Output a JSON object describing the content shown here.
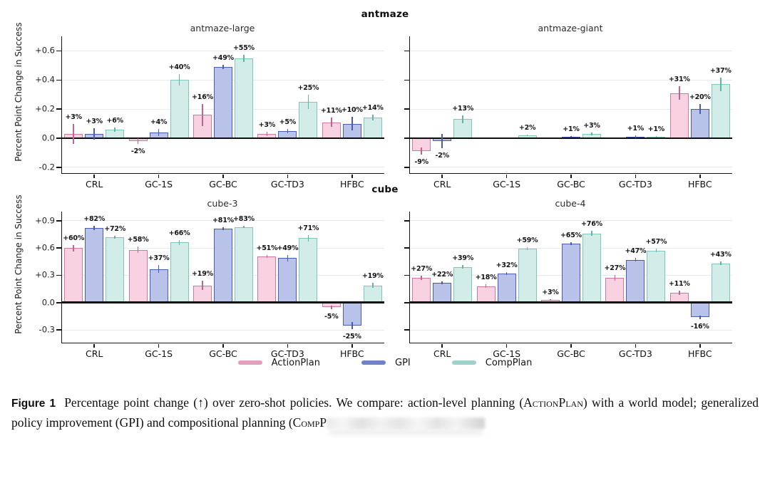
{
  "rows": [
    {
      "header": "antmaze",
      "ylabel": "Percent Point Change in Success"
    },
    {
      "header": "cube",
      "ylabel": "Percent Point Change in Success"
    }
  ],
  "chart_data": [
    {
      "type": "bar",
      "title": "antmaze-large",
      "categories": [
        "CRL",
        "GC-1S",
        "GC-BC",
        "GC-TD3",
        "HFBC"
      ],
      "ylim": [
        -0.24,
        0.7
      ],
      "yticks": [
        {
          "v": 0.6,
          "label": "+0.6"
        },
        {
          "v": 0.4,
          "label": "+0.4"
        },
        {
          "v": 0.2,
          "label": "+0.2"
        },
        {
          "v": 0.0,
          "label": "0.0"
        },
        {
          "v": -0.2,
          "label": "-0.2"
        }
      ],
      "unit": "percent points; bar height = value/100",
      "series": [
        {
          "name": "ActionPlan",
          "values": [
            3,
            -2,
            16,
            3,
            11
          ],
          "labels": [
            "+3%",
            "-2%",
            "+16%",
            "+3%",
            "+11%"
          ],
          "errs": [
            7,
            2,
            7.5,
            1.5,
            3
          ]
        },
        {
          "name": "GPI",
          "values": [
            3,
            4,
            49,
            5,
            10
          ],
          "labels": [
            "+3%",
            "+4%",
            "+49%",
            "+5%",
            "+10%"
          ],
          "errs": [
            4,
            2.5,
            1.5,
            1.5,
            4.5
          ]
        },
        {
          "name": "CompPlan",
          "values": [
            6,
            40,
            55,
            25,
            14
          ],
          "labels": [
            "+6%",
            "+40%",
            "+55%",
            "+25%",
            "+14%"
          ],
          "errs": [
            1.5,
            4,
            2.5,
            5,
            2
          ]
        }
      ]
    },
    {
      "type": "bar",
      "title": "antmaze-giant",
      "categories": [
        "CRL",
        "GC-1S",
        "GC-BC",
        "GC-TD3",
        "HFBC"
      ],
      "ylim": [
        -0.24,
        0.7
      ],
      "yticks": [
        {
          "v": 0.6,
          "label": ""
        },
        {
          "v": 0.4,
          "label": ""
        },
        {
          "v": 0.2,
          "label": ""
        },
        {
          "v": 0.0,
          "label": ""
        },
        {
          "v": -0.2,
          "label": ""
        }
      ],
      "unit": "percent points; bar height = value/100",
      "series": [
        {
          "name": "ActionPlan",
          "values": [
            -9,
            null,
            null,
            null,
            31
          ],
          "labels": [
            "-9%",
            "",
            "",
            "",
            "+31%"
          ],
          "errs": [
            2.5,
            0,
            0,
            0,
            4.5
          ]
        },
        {
          "name": "GPI",
          "values": [
            -2,
            null,
            1,
            1,
            20
          ],
          "labels": [
            "-2%",
            "",
            "+1%",
            "+1%",
            "+20%"
          ],
          "errs": [
            5,
            0,
            0.5,
            1,
            3.5
          ]
        },
        {
          "name": "CompPlan",
          "values": [
            13,
            2,
            3,
            1,
            37
          ],
          "labels": [
            "+13%",
            "+2%",
            "+3%",
            "+1%",
            "+37%"
          ],
          "errs": [
            2.5,
            0.5,
            1,
            0.5,
            4.5
          ]
        }
      ]
    },
    {
      "type": "bar",
      "title": "cube-3",
      "categories": [
        "CRL",
        "GC-1S",
        "GC-BC",
        "GC-TD3",
        "HFBC"
      ],
      "ylim": [
        -0.44,
        1.0
      ],
      "yticks": [
        {
          "v": 0.9,
          "label": "+0.9"
        },
        {
          "v": 0.6,
          "label": "+0.6"
        },
        {
          "v": 0.3,
          "label": "+0.3"
        },
        {
          "v": 0.0,
          "label": "0.0"
        },
        {
          "v": -0.3,
          "label": "-0.3"
        }
      ],
      "unit": "percent points; bar height = value/100",
      "series": [
        {
          "name": "ActionPlan",
          "values": [
            60,
            58,
            19,
            51,
            -5
          ],
          "labels": [
            "+60%",
            "+58%",
            "+19%",
            "+51%",
            "-5%"
          ],
          "errs": [
            3.5,
            3.5,
            5,
            1.5,
            2
          ]
        },
        {
          "name": "GPI",
          "values": [
            82,
            37,
            81,
            49,
            -25
          ],
          "labels": [
            "+82%",
            "+37%",
            "+81%",
            "+49%",
            "-25%"
          ],
          "errs": [
            2.5,
            4,
            1.5,
            3.5,
            4
          ]
        },
        {
          "name": "CompPlan",
          "values": [
            72,
            66,
            83,
            71,
            19
          ],
          "labels": [
            "+72%",
            "+66%",
            "+83%",
            "+71%",
            "+19%"
          ],
          "errs": [
            1.5,
            2.5,
            1,
            3.5,
            2.5
          ]
        }
      ]
    },
    {
      "type": "bar",
      "title": "cube-4",
      "categories": [
        "CRL",
        "GC-1S",
        "GC-BC",
        "GC-TD3",
        "HFBC"
      ],
      "ylim": [
        -0.44,
        1.0
      ],
      "yticks": [
        {
          "v": 0.9,
          "label": ""
        },
        {
          "v": 0.6,
          "label": ""
        },
        {
          "v": 0.3,
          "label": ""
        },
        {
          "v": 0.0,
          "label": ""
        },
        {
          "v": -0.3,
          "label": ""
        }
      ],
      "unit": "percent points; bar height = value/100",
      "series": [
        {
          "name": "ActionPlan",
          "values": [
            27,
            18,
            3,
            27,
            11
          ],
          "labels": [
            "+27%",
            "+18%",
            "+3%",
            "+27%",
            "+11%"
          ],
          "errs": [
            2.5,
            2,
            1,
            3,
            2.5
          ]
        },
        {
          "name": "GPI",
          "values": [
            22,
            32,
            65,
            47,
            -16
          ],
          "labels": [
            "+22%",
            "+32%",
            "+65%",
            "+47%",
            "-16%"
          ],
          "errs": [
            1.5,
            1.5,
            1.5,
            2,
            2
          ]
        },
        {
          "name": "CompPlan",
          "values": [
            39,
            59,
            76,
            57,
            43
          ],
          "labels": [
            "+39%",
            "+59%",
            "+76%",
            "+57%",
            "+43%"
          ],
          "errs": [
            2,
            1.5,
            2.5,
            2,
            2
          ]
        }
      ]
    }
  ],
  "legend": {
    "items": [
      {
        "label": "ActionPlan",
        "color": "#e2a0bd"
      },
      {
        "label": "GPI",
        "color": "#6e82c8"
      },
      {
        "label": "CompPlan",
        "color": "#9ed1ca"
      }
    ]
  },
  "style": {
    "series_colors": {
      "ActionPlan": {
        "fill": "#f8d2e0",
        "edge": "#d077a4",
        "err": "#c4638f"
      },
      "GPI": {
        "fill": "#b9c2e8",
        "edge": "#4a5cae",
        "err": "#4a5cae"
      },
      "CompPlan": {
        "fill": "#d2ece7",
        "edge": "#7fc6bc",
        "err": "#62b4aa"
      }
    },
    "grid_color": "#e9e9f0",
    "spine_color": "#141414",
    "zero_line_color": "#0d0d0d"
  },
  "caption": {
    "label": "Figure 1",
    "p1": "Percentage point change (↑) over zero-shot policies. We compare: action-level planning (",
    "sc1": "ActionPlan",
    "p2": ") with a world model; generalized policy improvement (GPI) and compositional planning (",
    "sc2": "CompP"
  }
}
